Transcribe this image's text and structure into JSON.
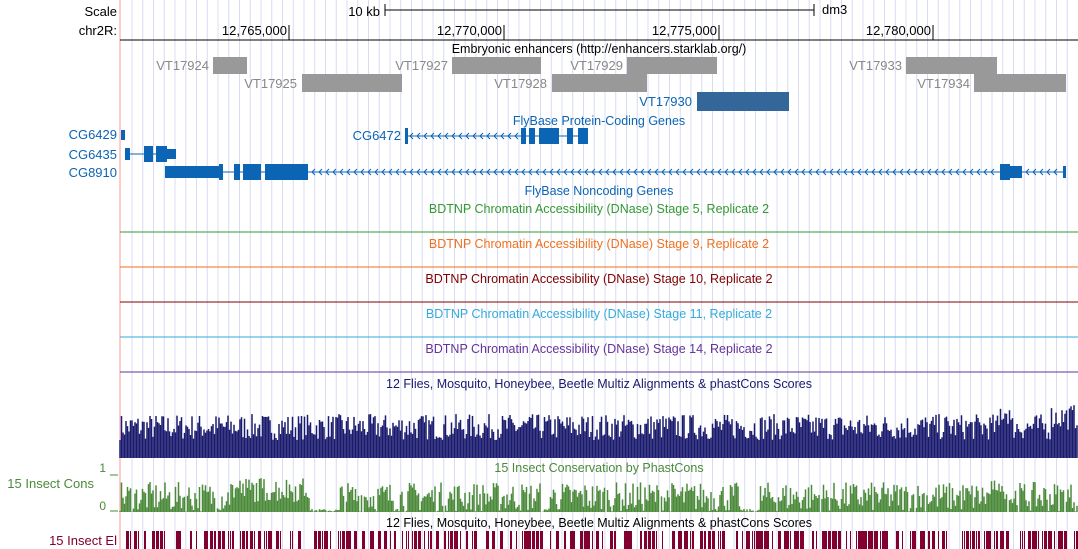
{
  "ruler": {
    "scale_label": "Scale",
    "scale_bar": "10 kb",
    "assembly": "dm3",
    "chrom_label": "chr2R:",
    "ticks": [
      "12,765,000",
      "12,770,000",
      "12,775,000",
      "12,780,000"
    ]
  },
  "tracks": {
    "enhancers": {
      "title": "Embryonic enhancers (http://enhancers.starklab.org/)",
      "items": [
        "VT17924",
        "VT17925",
        "VT17927",
        "VT17928",
        "VT17929",
        "VT17930",
        "VT17933",
        "VT17934"
      ]
    },
    "flybase_coding": {
      "title": "FlyBase Protein-Coding Genes",
      "genes": [
        "CG6429",
        "CG6435",
        "CG8910",
        "CG6472"
      ]
    },
    "flybase_noncoding": {
      "title": "FlyBase Noncoding Genes"
    },
    "dnase": [
      {
        "title": "BDTNP Chromatin Accessibility (DNase) Stage 5, Replicate 2",
        "color": "#339933"
      },
      {
        "title": "BDTNP Chromatin Accessibility (DNase) Stage 9, Replicate 2",
        "color": "#f0701e"
      },
      {
        "title": "BDTNP Chromatin Accessibility (DNase) Stage 10, Replicate 2",
        "color": "#800000"
      },
      {
        "title": "BDTNP Chromatin Accessibility (DNase) Stage 11, Replicate 2",
        "color": "#33aadd"
      },
      {
        "title": "BDTNP Chromatin Accessibility (DNase) Stage 14, Replicate 2",
        "color": "#663399"
      }
    ],
    "multiz": {
      "title": "12 Flies, Mosquito, Honeybee, Beetle Multiz Alignments & phastCons Scores"
    },
    "insect_cons": {
      "title": "15 Insect Conservation by PhastCons",
      "side_label": "15 Insect Cons",
      "axis_max": "1",
      "axis_min": "0"
    },
    "insect_el": {
      "title": "12 Flies, Mosquito, Honeybee, Beetle Multiz Alignments & phastCons Scores",
      "side_label": "15 Insect El"
    }
  },
  "colors": {
    "gene_blue": "#0c64b4",
    "enhancer_gray": "#999999",
    "enhancer_highlight": "#336699",
    "multiz_navy": "#1a1a6e",
    "cons_green": "#4a8a3a",
    "el_maroon": "#800030"
  }
}
